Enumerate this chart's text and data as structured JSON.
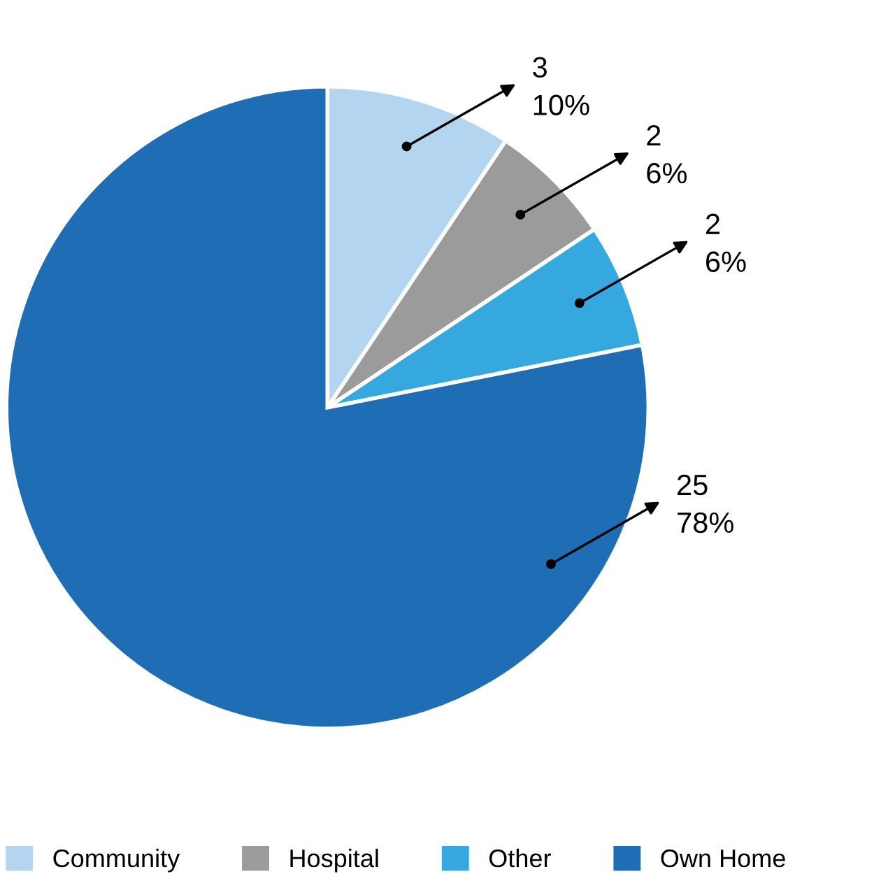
{
  "chart_data": {
    "type": "pie",
    "categories": [
      "Community",
      "Hospital",
      "Other",
      "Own Home"
    ],
    "values": [
      3,
      2,
      2,
      25
    ],
    "colors": [
      "#b3d5f0",
      "#9b9b9b",
      "#35a8e0",
      "#1f6db5"
    ],
    "value_labels": [
      "3\n10%",
      "2\n6%",
      "2\n6%",
      "25\n78%"
    ],
    "legend": "bottom"
  }
}
